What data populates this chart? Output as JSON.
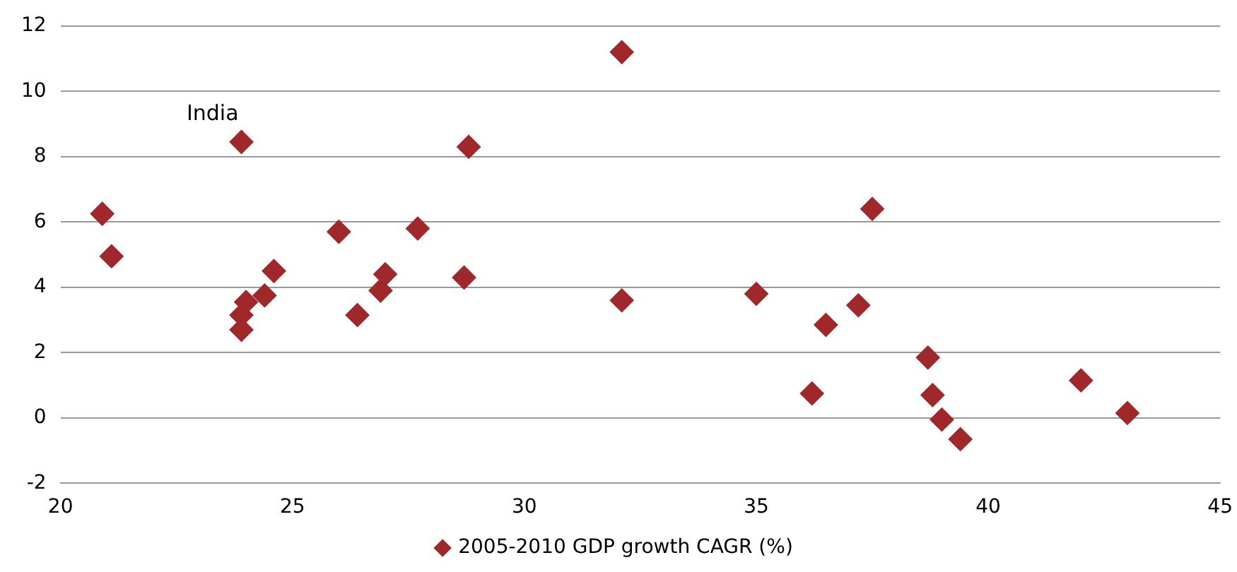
{
  "chart_data": {
    "type": "scatter",
    "marker": "diamond",
    "grid": "y",
    "legend": "bottom",
    "xlim": [
      20,
      45
    ],
    "xticks": [
      20,
      25,
      30,
      35,
      40,
      45
    ],
    "ylim": [
      -2,
      12
    ],
    "yticks": [
      -2,
      0,
      2,
      4,
      6,
      8,
      10,
      12
    ],
    "annotations": [
      {
        "text": "India",
        "x": 23.9,
        "y": 8.45
      }
    ],
    "series": [
      {
        "name": "2005-2010 GDP growth CAGR (%)",
        "color": "#a0282a",
        "x": [
          20.9,
          21.1,
          23.9,
          23.9,
          24.0,
          23.9,
          24.4,
          24.6,
          26.0,
          26.4,
          26.9,
          27.0,
          27.7,
          28.7,
          28.8,
          32.1,
          32.1,
          35.0,
          36.2,
          36.5,
          37.2,
          37.5,
          38.7,
          38.8,
          39.0,
          39.4,
          42.0,
          43.0
        ],
        "values": [
          6.25,
          4.95,
          8.45,
          3.15,
          3.55,
          2.7,
          3.75,
          4.5,
          5.7,
          3.15,
          3.9,
          4.4,
          5.8,
          4.3,
          8.3,
          11.2,
          3.6,
          3.8,
          0.75,
          2.85,
          3.45,
          6.4,
          1.85,
          0.7,
          -0.05,
          -0.65,
          1.15,
          0.15
        ]
      }
    ]
  }
}
